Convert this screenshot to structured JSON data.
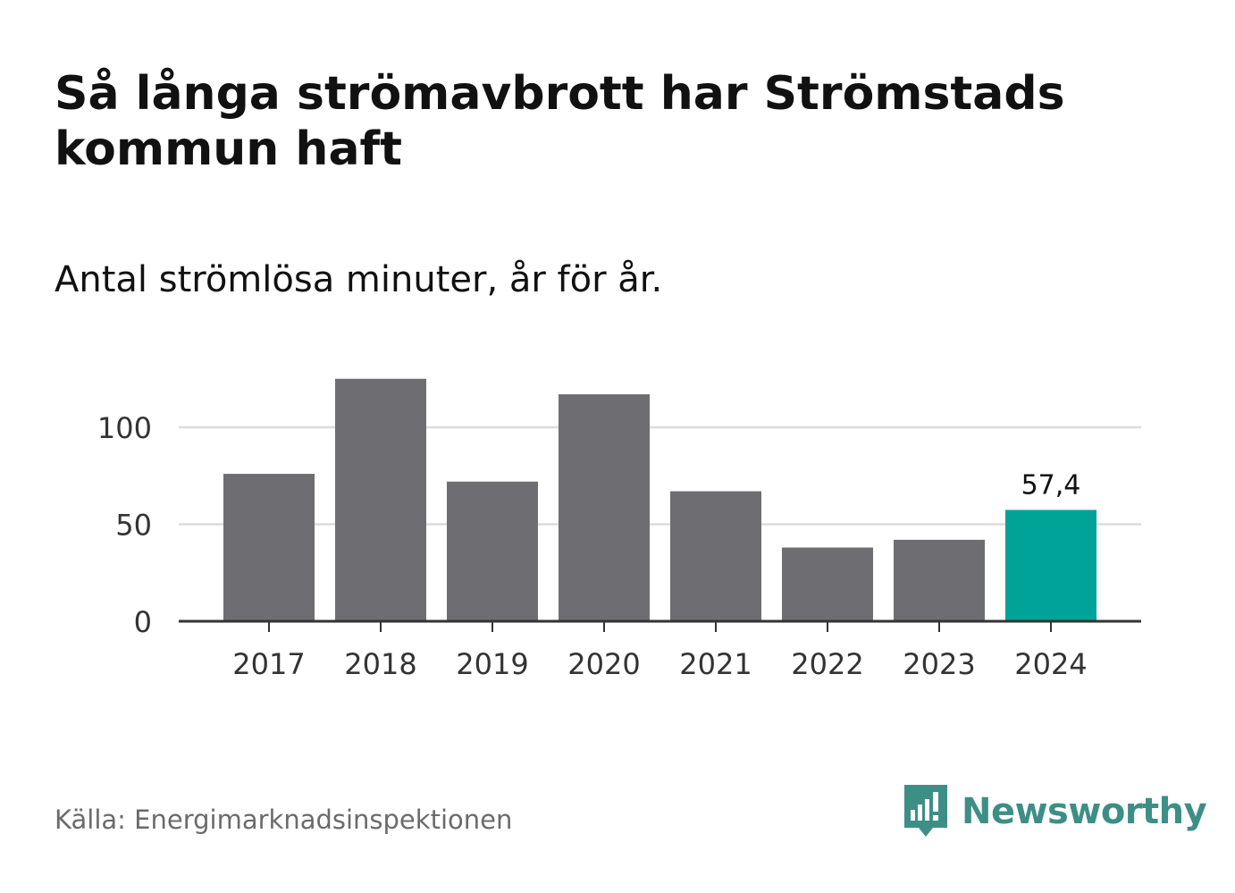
{
  "chart_data": {
    "type": "bar",
    "title": "Så långa strömavbrott har Strömstads kommun haft",
    "subtitle": "Antal strömlösa minuter, år för år.",
    "categories": [
      "2017",
      "2018",
      "2019",
      "2020",
      "2021",
      "2022",
      "2023",
      "2024"
    ],
    "values": [
      76,
      125,
      72,
      117,
      67,
      38,
      42,
      57.4
    ],
    "highlight_index": 7,
    "highlight_label": "57,4",
    "yticks": [
      0,
      50,
      100
    ],
    "ylim": [
      0,
      132
    ],
    "xlabel": "",
    "ylabel": "",
    "grid": true
  },
  "colors": {
    "bar": "#6e6d72",
    "highlight": "#00a398",
    "grid": "#dcdcdc",
    "axis": "#333333",
    "brand": "#3d8f86"
  },
  "footer": {
    "source": "Källa: Energimarknadsinspektionen",
    "brand": "Newsworthy"
  }
}
